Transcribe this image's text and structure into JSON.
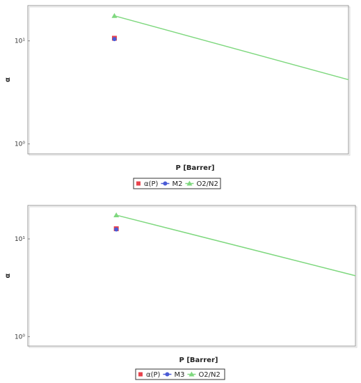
{
  "chart_data": [
    {
      "type": "scatter",
      "xlabel": "P [Barrer]",
      "ylabel": "α",
      "yscale": "log",
      "ylim": [
        0.8,
        22
      ],
      "y_ticks": [
        {
          "value": 1,
          "label": "10⁰"
        },
        {
          "value": 10,
          "label": "10¹"
        }
      ],
      "grid": false,
      "legend_position": "bottom-center",
      "series": [
        {
          "name": "α(P)",
          "kind": "marker-square",
          "color": "#e8434c",
          "points": [
            {
              "x": 0.27,
              "y": 10.6
            }
          ]
        },
        {
          "name": "M2",
          "kind": "line-circle",
          "color": "#4a5bd6",
          "points": [
            {
              "x": 0.27,
              "y": 10.4
            }
          ]
        },
        {
          "name": "O2/N2",
          "kind": "line-triangle",
          "color": "#7fd87f",
          "points": [
            {
              "x": 0.27,
              "y": 17.5
            },
            {
              "x": 1.0,
              "y": 4.2
            }
          ]
        }
      ]
    },
    {
      "type": "scatter",
      "xlabel": "P [Barrer]",
      "ylabel": "α",
      "yscale": "log",
      "ylim": [
        0.8,
        22
      ],
      "y_ticks": [
        {
          "value": 1,
          "label": "10⁰"
        },
        {
          "value": 10,
          "label": "10¹"
        }
      ],
      "grid": false,
      "legend_position": "bottom-center",
      "series": [
        {
          "name": "α(P)",
          "kind": "marker-square",
          "color": "#e8434c",
          "points": [
            {
              "x": 0.27,
              "y": 12.7
            }
          ]
        },
        {
          "name": "M3",
          "kind": "line-circle",
          "color": "#4a5bd6",
          "points": [
            {
              "x": 0.27,
              "y": 12.5
            }
          ]
        },
        {
          "name": "O2/N2",
          "kind": "line-triangle",
          "color": "#7fd87f",
          "points": [
            {
              "x": 0.27,
              "y": 17.5
            },
            {
              "x": 1.0,
              "y": 4.2
            }
          ]
        }
      ]
    }
  ]
}
